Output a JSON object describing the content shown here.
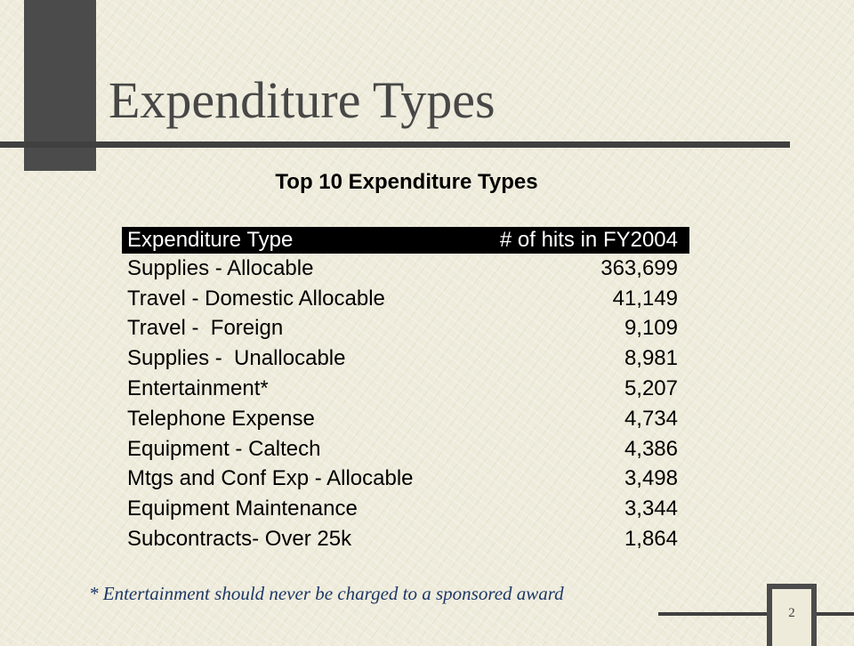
{
  "slide": {
    "title": "Expenditure Types",
    "footnote": "* Entertainment should never be charged to a sponsored award",
    "page_number": "2"
  },
  "table": {
    "caption": "Top 10 Expenditure Types",
    "headers": [
      "Expenditure Type",
      "# of hits in FY2004"
    ],
    "rows": [
      {
        "type": "Supplies - Allocable",
        "hits": "363,699"
      },
      {
        "type": "Travel - Domestic Allocable",
        "hits": "41,149"
      },
      {
        "type": "Travel -  Foreign",
        "hits": "9,109"
      },
      {
        "type": "Supplies -  Unallocable",
        "hits": "8,981"
      },
      {
        "type": "Entertainment*",
        "hits": "5,207"
      },
      {
        "type": "Telephone Expense",
        "hits": "4,734"
      },
      {
        "type": "Equipment - Caltech",
        "hits": "4,386"
      },
      {
        "type": "Mtgs and Conf Exp - Allocable",
        "hits": "3,498"
      },
      {
        "type": "Equipment Maintenance",
        "hits": "3,344"
      },
      {
        "type": "Subcontracts- Over 25k",
        "hits": "1,864"
      }
    ]
  },
  "colors": {
    "background": "#eeebdb",
    "accent_gray": "#4b4b4b",
    "footnote": "#1c3766"
  }
}
